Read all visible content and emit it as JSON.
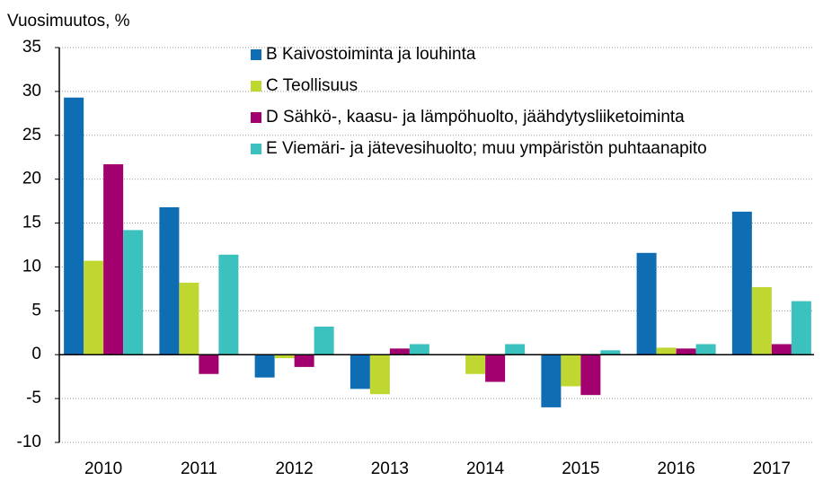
{
  "chart_data": {
    "type": "bar",
    "y_label": "Vuosimuutos, %",
    "categories": [
      "2010",
      "2011",
      "2012",
      "2013",
      "2014",
      "2015",
      "2016",
      "2017"
    ],
    "series": [
      {
        "name": "B Kaivostoiminta ja louhinta",
        "color": "#0f6db3",
        "values": [
          29.3,
          16.8,
          -2.6,
          -3.9,
          0,
          -6.0,
          11.6,
          16.3
        ]
      },
      {
        "name": "C Teollisuus",
        "color": "#bfd730",
        "values": [
          10.7,
          8.2,
          -0.4,
          -4.5,
          -2.2,
          -3.6,
          0.8,
          7.7
        ]
      },
      {
        "name": "D Sähkö-, kaasu- ja lämpöhuolto, jäähdytysliiketoiminta",
        "color": "#a3006f",
        "values": [
          21.7,
          -2.2,
          -1.4,
          0.7,
          -3.1,
          -4.6,
          0.7,
          1.2
        ]
      },
      {
        "name": "E Viemäri- ja jätevesihuolto; muu ympäristön puhtaanapito",
        "color": "#3cc2be",
        "values": [
          14.2,
          11.4,
          3.2,
          1.2,
          1.2,
          0.5,
          1.2,
          6.1
        ]
      }
    ],
    "ylim": [
      -10,
      35
    ],
    "yticks": [
      -10,
      -5,
      0,
      5,
      10,
      15,
      20,
      25,
      30,
      35
    ],
    "grid": true
  }
}
